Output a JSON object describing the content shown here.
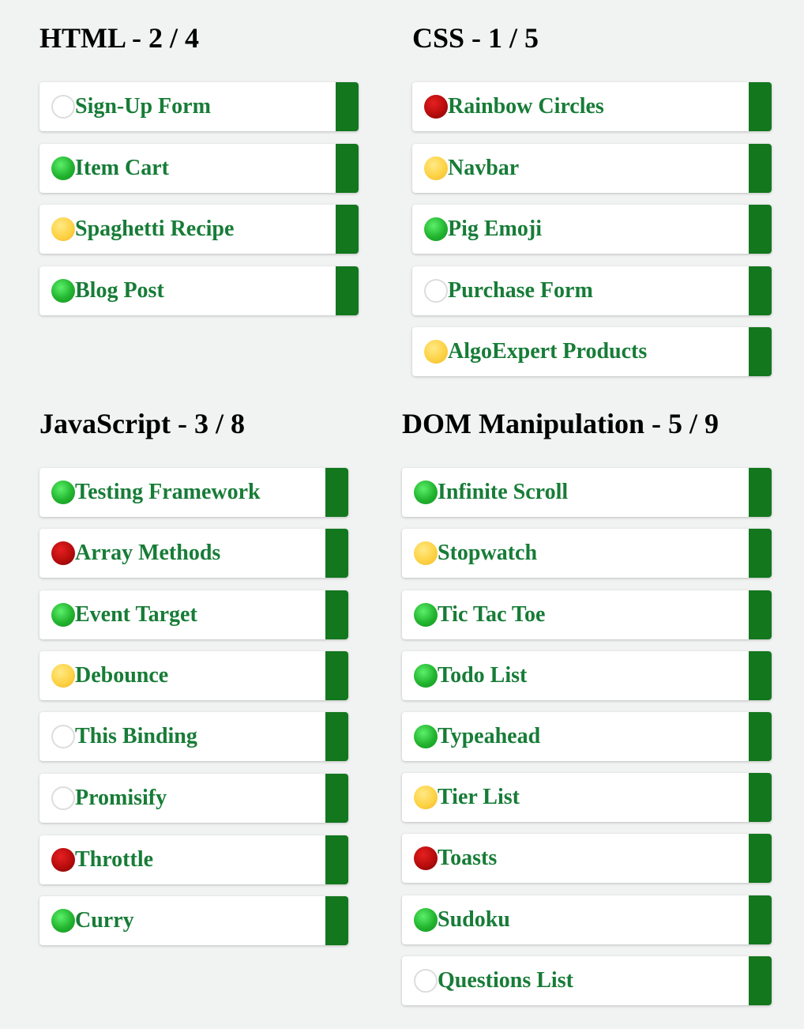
{
  "categories": [
    {
      "title": "HTML - 2 / 4",
      "questions": [
        {
          "name": "Sign-Up Form",
          "status": "unattempted"
        },
        {
          "name": "Item Cart",
          "status": "correct"
        },
        {
          "name": "Spaghetti Recipe",
          "status": "partially-correct"
        },
        {
          "name": "Blog Post",
          "status": "correct"
        }
      ]
    },
    {
      "title": "CSS - 1 / 5",
      "questions": [
        {
          "name": "Rainbow Circles",
          "status": "incorrect"
        },
        {
          "name": "Navbar",
          "status": "partially-correct"
        },
        {
          "name": "Pig Emoji",
          "status": "correct"
        },
        {
          "name": "Purchase Form",
          "status": "unattempted"
        },
        {
          "name": "AlgoExpert Products",
          "status": "partially-correct"
        }
      ]
    },
    {
      "title": "JavaScript - 3 / 8",
      "questions": [
        {
          "name": "Testing Framework",
          "status": "correct"
        },
        {
          "name": "Array Methods",
          "status": "incorrect"
        },
        {
          "name": "Event Target",
          "status": "correct"
        },
        {
          "name": "Debounce",
          "status": "partially-correct"
        },
        {
          "name": "This Binding",
          "status": "unattempted"
        },
        {
          "name": "Promisify",
          "status": "unattempted"
        },
        {
          "name": "Throttle",
          "status": "incorrect"
        },
        {
          "name": "Curry",
          "status": "correct"
        }
      ]
    },
    {
      "title": "DOM Manipulation - 5 / 9",
      "questions": [
        {
          "name": "Infinite Scroll",
          "status": "correct"
        },
        {
          "name": "Stopwatch",
          "status": "partially-correct"
        },
        {
          "name": "Tic Tac Toe",
          "status": "correct"
        },
        {
          "name": "Todo List",
          "status": "correct"
        },
        {
          "name": "Typeahead",
          "status": "correct"
        },
        {
          "name": "Tier List",
          "status": "partially-correct"
        },
        {
          "name": "Toasts",
          "status": "incorrect"
        },
        {
          "name": "Sudoku",
          "status": "correct"
        },
        {
          "name": "Questions List",
          "status": "unattempted"
        }
      ]
    }
  ],
  "colors": {
    "background": "#f1f2f2",
    "question_text": "#177c37",
    "difficulty_tab": "#12771d",
    "correct": "#22b42f",
    "partially_correct": "#fdd245",
    "incorrect": "#b70c0c",
    "unattempted": "#ffffff"
  },
  "icons": {
    "correct": "green-circle-icon",
    "partially-correct": "yellow-circle-icon",
    "incorrect": "red-circle-icon",
    "unattempted": "empty-circle-icon"
  }
}
